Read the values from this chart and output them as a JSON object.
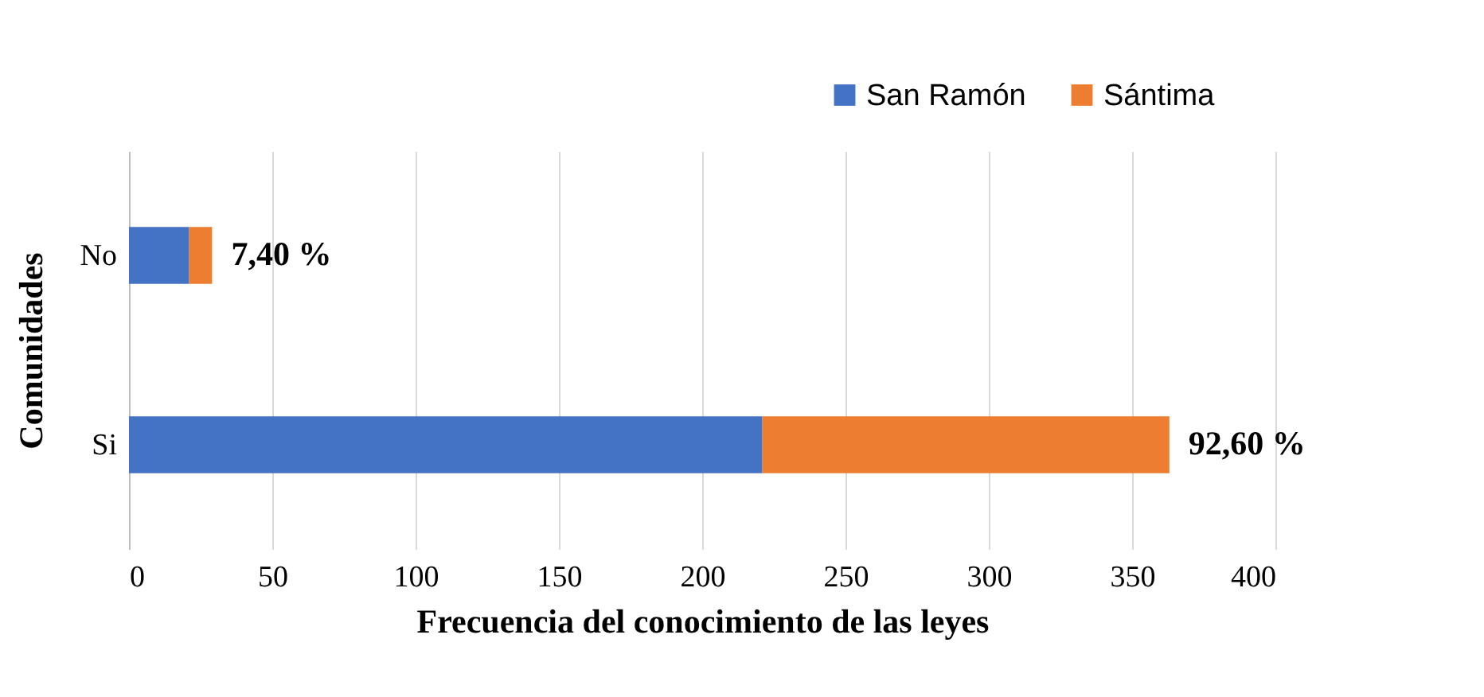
{
  "chart_data": {
    "type": "bar",
    "orientation": "horizontal",
    "stacked": true,
    "categories": [
      "No",
      "Si"
    ],
    "series": [
      {
        "name": "San Ramón",
        "color": "#4472c4",
        "values": [
          21,
          221
        ]
      },
      {
        "name": "Sántima",
        "color": "#ed7d31",
        "values": [
          8,
          142
        ]
      }
    ],
    "annotations": [
      {
        "text": "7,40 %",
        "x": 29,
        "y": "No"
      },
      {
        "text": "92,60 %",
        "x": 363,
        "y": "Si"
      }
    ],
    "xlabel": "Frecuencia del conocimiento de las leyes",
    "ylabel": "Comunidades",
    "xlim": [
      0,
      400
    ],
    "xticks": [
      0,
      50,
      100,
      150,
      200,
      250,
      300,
      350,
      400
    ],
    "grid": "x",
    "legend": "top right"
  }
}
